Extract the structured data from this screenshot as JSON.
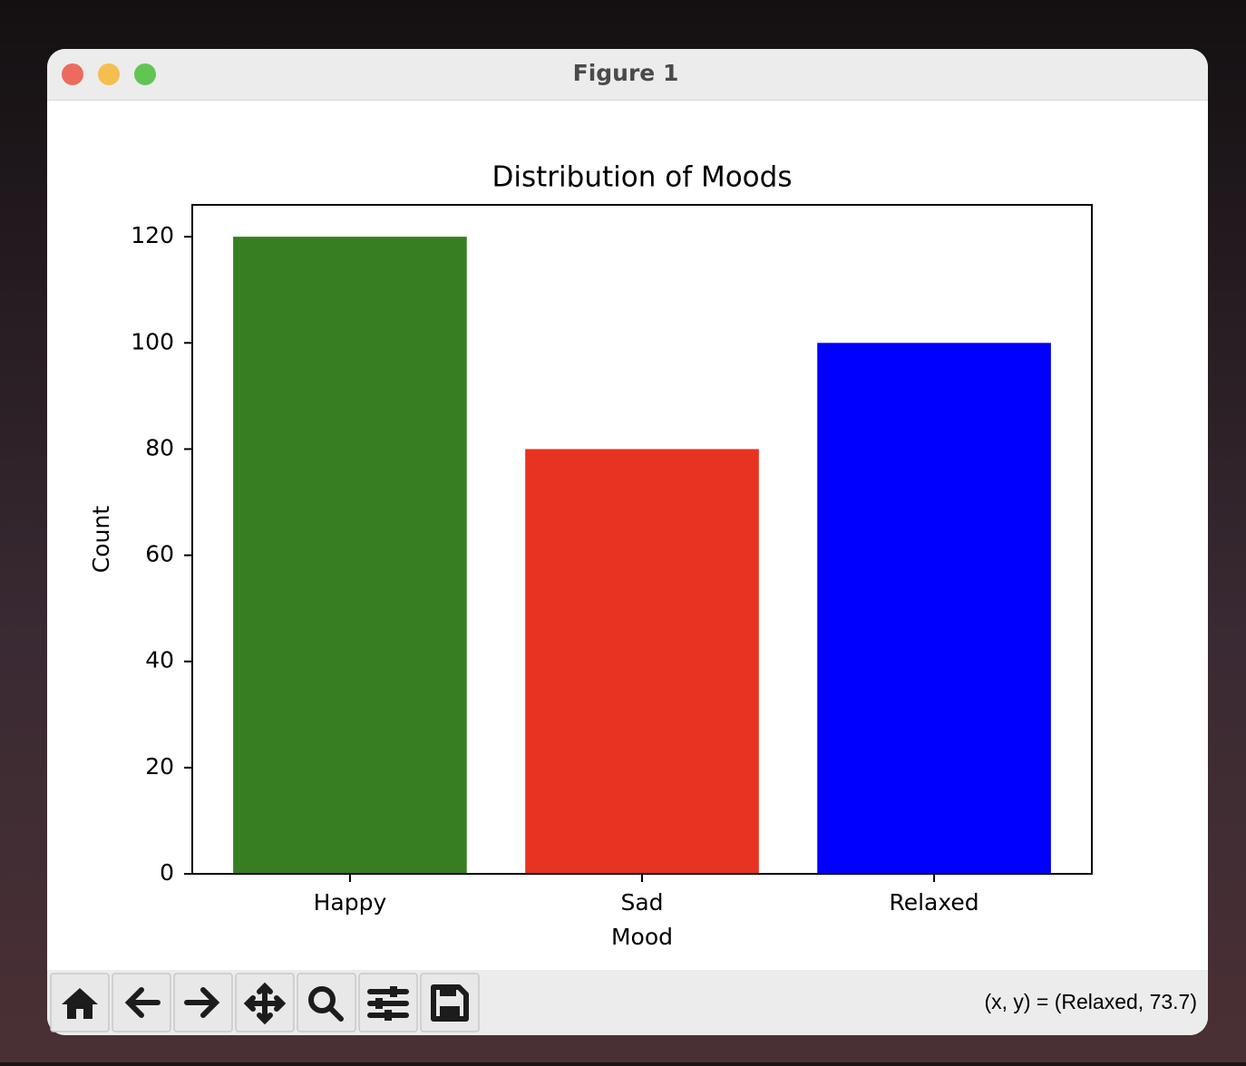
{
  "window": {
    "title": "Figure 1",
    "status": "(x, y) = (Relaxed, 73.7)"
  },
  "chart_data": {
    "type": "bar",
    "title": "Distribution of Moods",
    "x_label": "Mood",
    "y_label": "Count",
    "categories": [
      "Happy",
      "Sad",
      "Relaxed"
    ],
    "values": [
      120,
      80,
      100
    ],
    "colors": [
      "#377e22",
      "#e83323",
      "#0000ff"
    ],
    "ylim": [
      0,
      126
    ],
    "yticks": [
      0,
      20,
      40,
      60,
      80,
      100,
      120
    ],
    "grid": false
  }
}
